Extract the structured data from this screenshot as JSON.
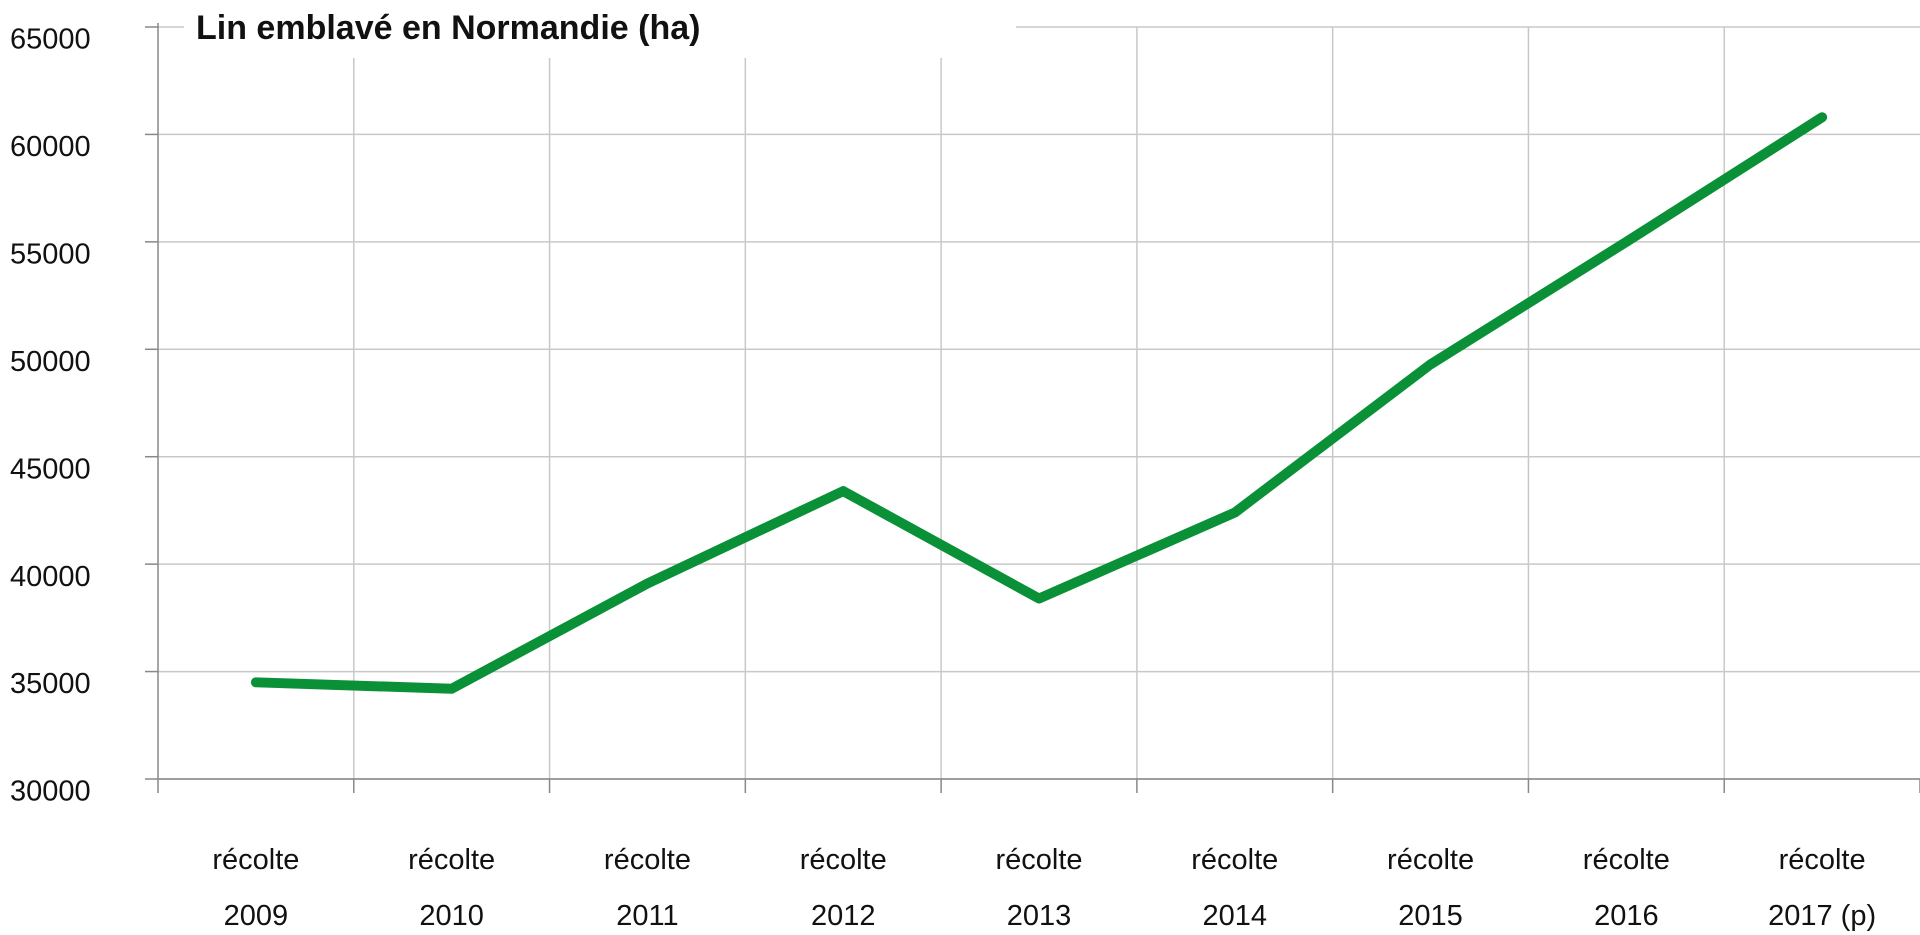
{
  "chart_data": {
    "type": "line",
    "title": "Lin emblavé en Normandie (ha)",
    "categories": [
      "récolte 2009",
      "récolte 2010",
      "récolte 2011",
      "récolte 2012",
      "récolte 2013",
      "récolte 2014",
      "récolte 2015",
      "récolte 2016",
      "récolte 2017 (p)"
    ],
    "series": [
      {
        "name": "Lin emblavé",
        "color": "#0a9138",
        "values": [
          34500,
          34200,
          39100,
          43400,
          38400,
          42400,
          49300,
          55000,
          60800
        ]
      }
    ],
    "ylim": [
      30000,
      65000
    ],
    "yticks": [
      30000,
      35000,
      40000,
      45000,
      50000,
      55000,
      60000,
      65000
    ],
    "grid": true
  }
}
